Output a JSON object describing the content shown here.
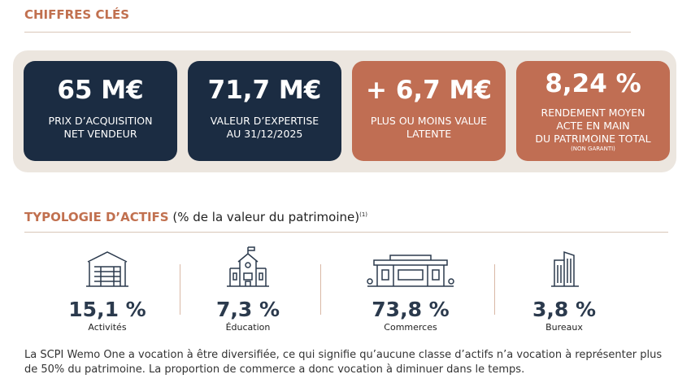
{
  "key_figures": {
    "title": "CHIFFRES CLÉS",
    "cards": [
      {
        "value": "65 M€",
        "label": [
          "PRIX D’ACQUISITION",
          "NET VENDEUR"
        ]
      },
      {
        "value": "71,7 M€",
        "label": [
          "VALEUR D’EXPERTISE",
          "AU 31/12/2025"
        ]
      },
      {
        "value": "+ 6,7 M€",
        "label": [
          "PLUS OU MOINS VALUE",
          "LATENTE"
        ]
      },
      {
        "value": "8,24 %",
        "label": [
          "RENDEMENT MOYEN",
          "ACTE EN MAIN",
          "DU PATRIMOINE TOTAL"
        ],
        "note": "(NON GARANTI)"
      }
    ]
  },
  "typology": {
    "title": "TYPOLOGIE D’ACTIFS",
    "subtitle": "(% de la valeur du patrimoine)",
    "footnote_ref": "(1)",
    "assets": [
      {
        "value": "15,1 %",
        "label": "Activités"
      },
      {
        "value": "7,3 %",
        "label": "Éducation"
      },
      {
        "value": "73,8 %",
        "label": "Commerces"
      },
      {
        "value": "3,8 %",
        "label": "Bureaux"
      }
    ],
    "note": "La SCPI Wemo One a vocation à être diversifiée, ce qui signifie qu’aucune classe d’actifs n’a vocation à représenter plus de 50% du patrimoine. La proportion de commerce a donc vocation à diminuer dans le temps."
  }
}
